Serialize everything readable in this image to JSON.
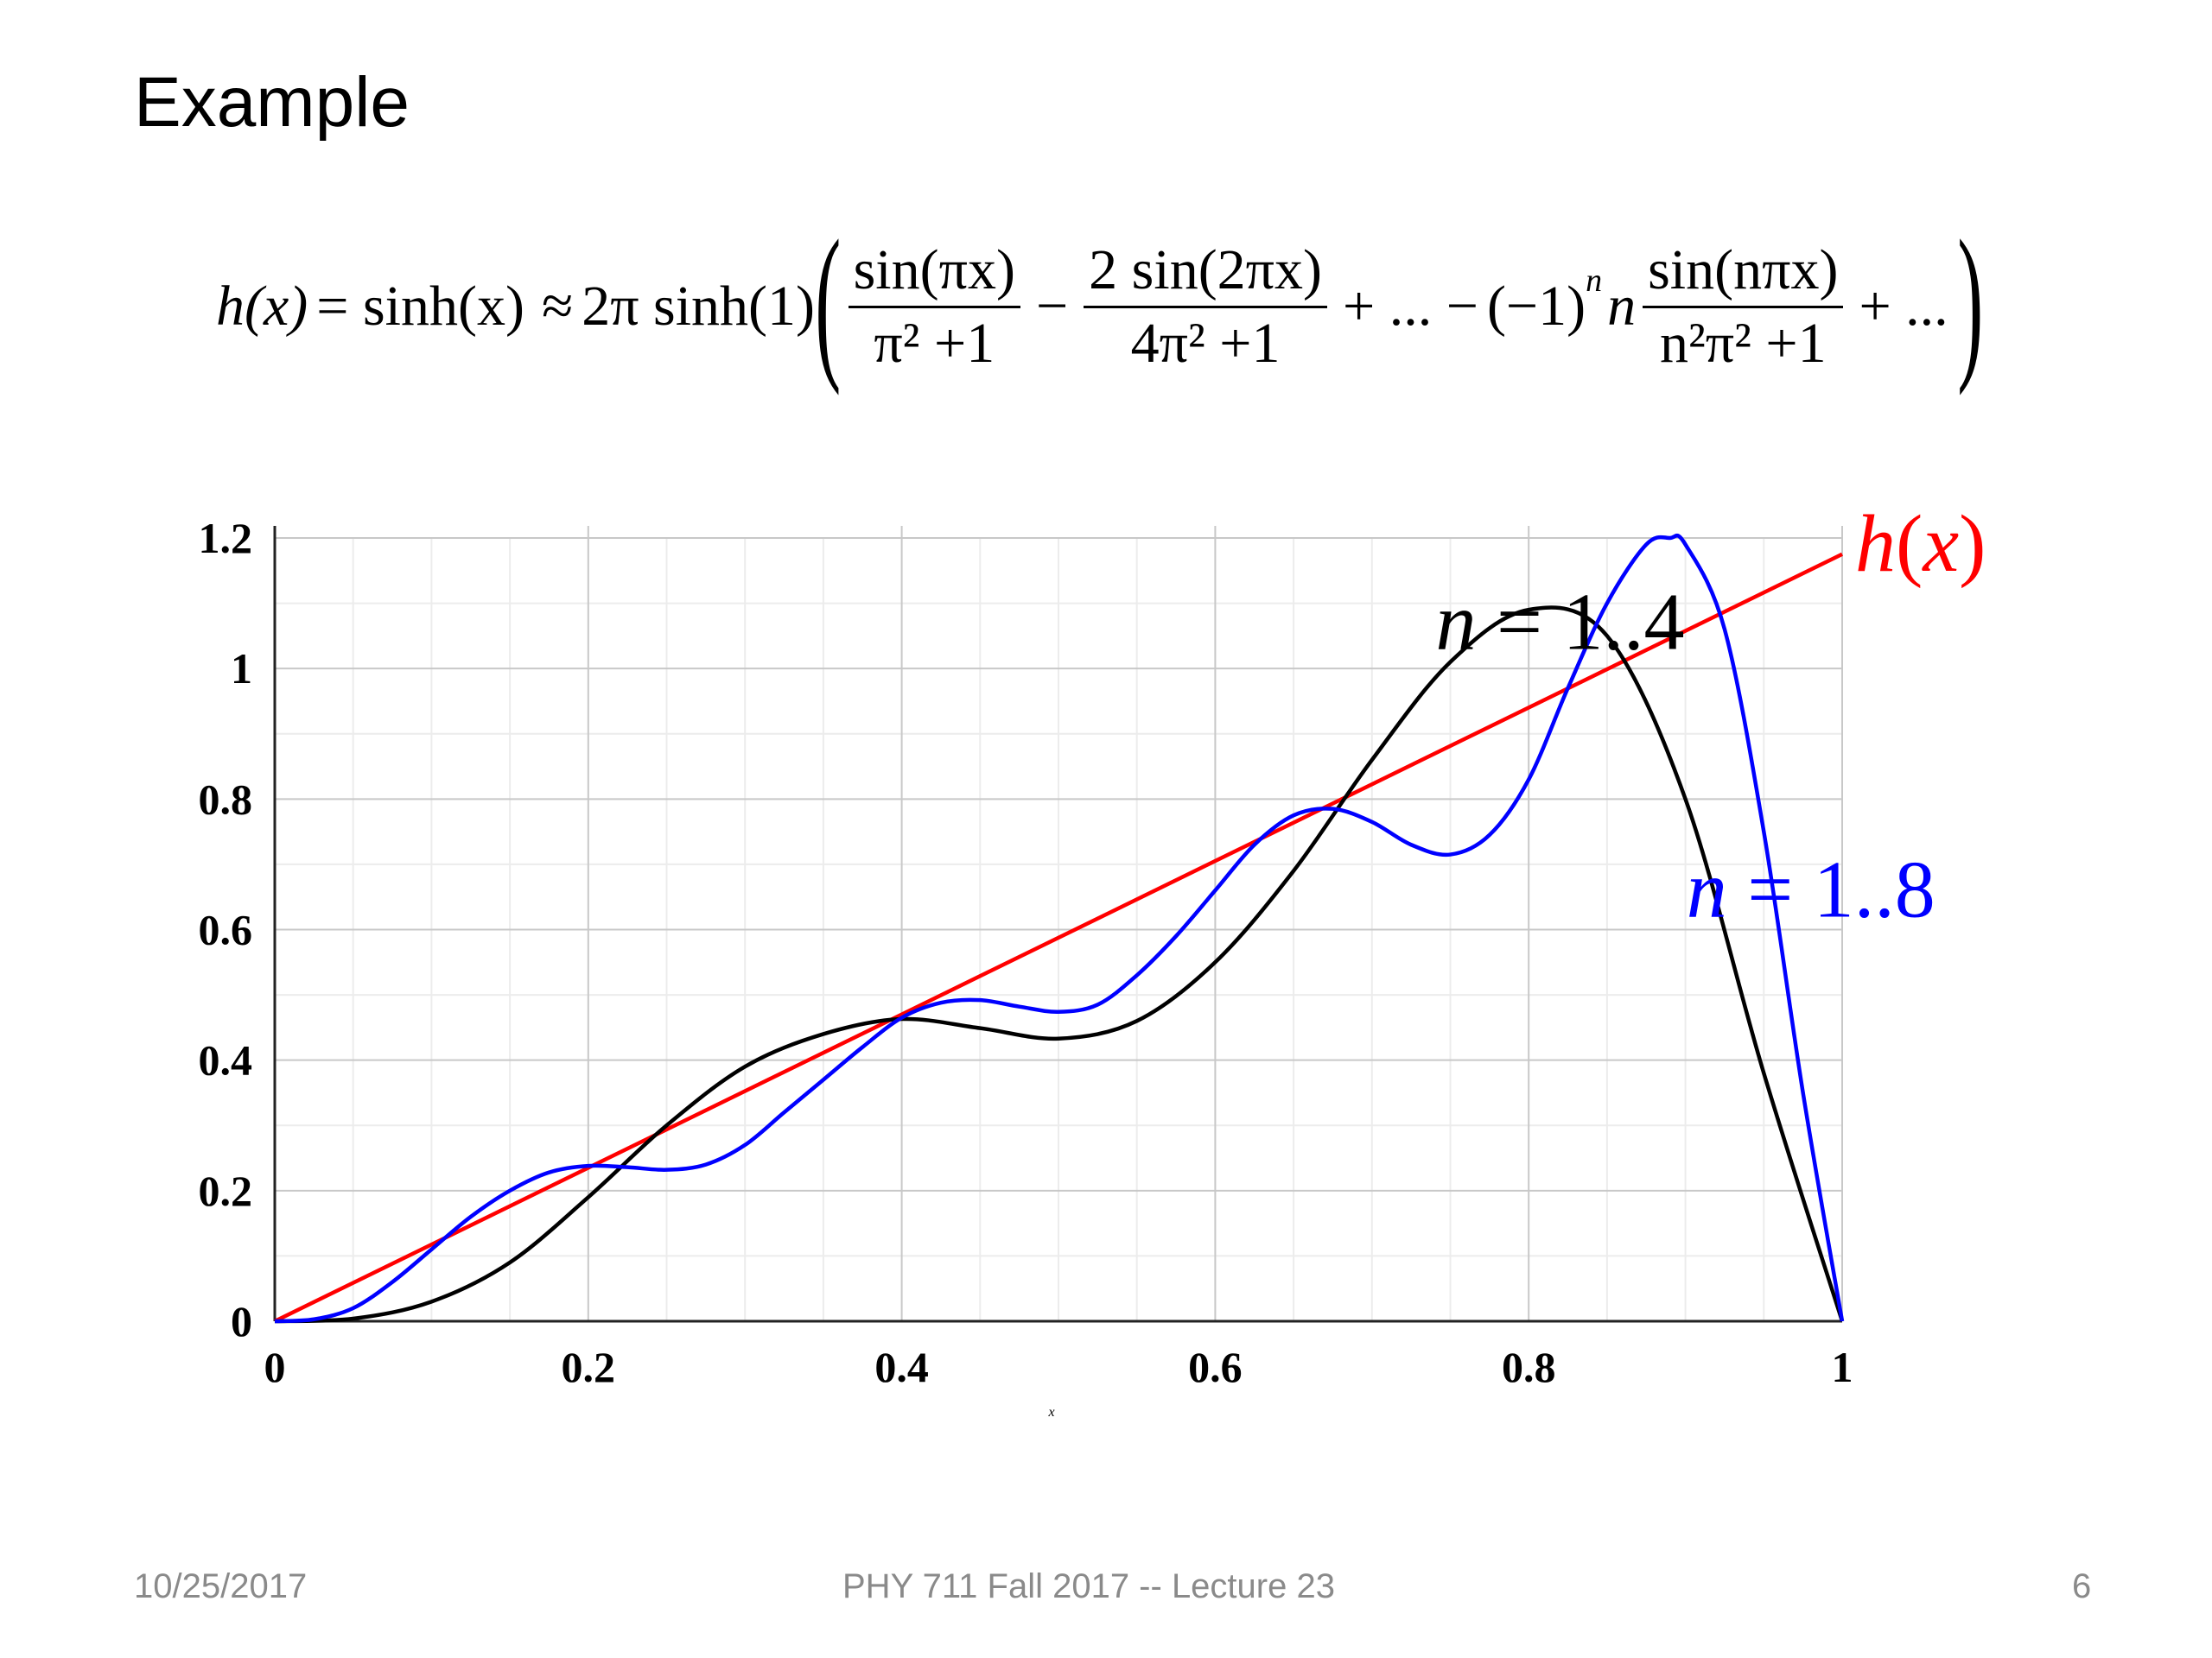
{
  "slide": {
    "title": "Example",
    "equation": {
      "lhs": "h(x)",
      "eq1": "= sinh(x)",
      "approx": "≈",
      "coef": "2π sinh(1)",
      "t1_num": "sin(πx)",
      "t1_den": "π² +1",
      "minus1": "−",
      "t2_num": "2 sin(2πx)",
      "t2_den": "4π² +1",
      "plus_dots": "+ ... −",
      "signfactor": "(−1)",
      "sup_n": "n",
      "n": "n",
      "tn_num": "sin(nπx)",
      "tn_den": "n²π² +1",
      "tail": "+ ..."
    },
    "footer": {
      "date": "10/25/2017",
      "course": "PHY 711  Fall 2017 -- Lecture 23",
      "page": "6"
    }
  },
  "chart_data": {
    "type": "line",
    "xlabel": "x",
    "xlim": [
      0,
      1
    ],
    "ylim": [
      0,
      1.2
    ],
    "x_ticks": [
      "0",
      "0.2",
      "0.4",
      "0.6",
      "0.8",
      "1"
    ],
    "y_ticks": [
      "0",
      "0.2",
      "0.4",
      "0.6",
      "0.8",
      "1",
      "1.2"
    ],
    "grid": true,
    "series": [
      {
        "name": "h(x)",
        "color": "#ff0000",
        "x": [
          0,
          1
        ],
        "y": [
          0,
          1.1752
        ]
      },
      {
        "name": "n=1..4",
        "color": "#000000",
        "x": [
          0,
          0.05,
          0.1,
          0.15,
          0.2,
          0.25,
          0.3,
          0.35,
          0.4,
          0.45,
          0.5,
          0.55,
          0.6,
          0.65,
          0.7,
          0.75,
          0.8,
          0.85,
          0.9,
          0.95,
          1
        ],
        "y": [
          0,
          0.004,
          0.03,
          0.09,
          0.19,
          0.3,
          0.39,
          0.44,
          0.463,
          0.449,
          0.433,
          0.46,
          0.55,
          0.69,
          0.86,
          1.01,
          1.09,
          1.05,
          0.8,
          0.38,
          0
        ]
      },
      {
        "name": "n=1..8",
        "color": "#0000ff",
        "x": [
          0,
          0.025,
          0.05,
          0.075,
          0.1,
          0.125,
          0.15,
          0.175,
          0.2,
          0.225,
          0.25,
          0.275,
          0.3,
          0.325,
          0.35,
          0.375,
          0.4,
          0.425,
          0.45,
          0.475,
          0.5,
          0.525,
          0.55,
          0.575,
          0.6,
          0.625,
          0.65,
          0.675,
          0.7,
          0.725,
          0.75,
          0.775,
          0.8,
          0.825,
          0.85,
          0.875,
          0.89,
          0.9,
          0.925,
          0.95,
          0.975,
          1
        ],
        "y": [
          0,
          0.003,
          0.02,
          0.06,
          0.11,
          0.16,
          0.2,
          0.228,
          0.238,
          0.236,
          0.232,
          0.24,
          0.27,
          0.32,
          0.37,
          0.42,
          0.465,
          0.488,
          0.492,
          0.482,
          0.474,
          0.485,
          0.53,
          0.59,
          0.66,
          0.73,
          0.775,
          0.785,
          0.765,
          0.73,
          0.715,
          0.745,
          0.83,
          0.97,
          1.1,
          1.19,
          1.2,
          1.19,
          1.06,
          0.75,
          0.35,
          0
        ]
      }
    ],
    "annotations": [
      {
        "text": "h(x)",
        "color": "#ff0000",
        "x": 1.05,
        "y": 1.15
      },
      {
        "text": "n = 1..4",
        "color": "#000000",
        "x": 0.82,
        "y": 1.03
      },
      {
        "text": "n = 1..8",
        "color": "#0000ff",
        "x": 0.98,
        "y": 0.62
      }
    ]
  }
}
